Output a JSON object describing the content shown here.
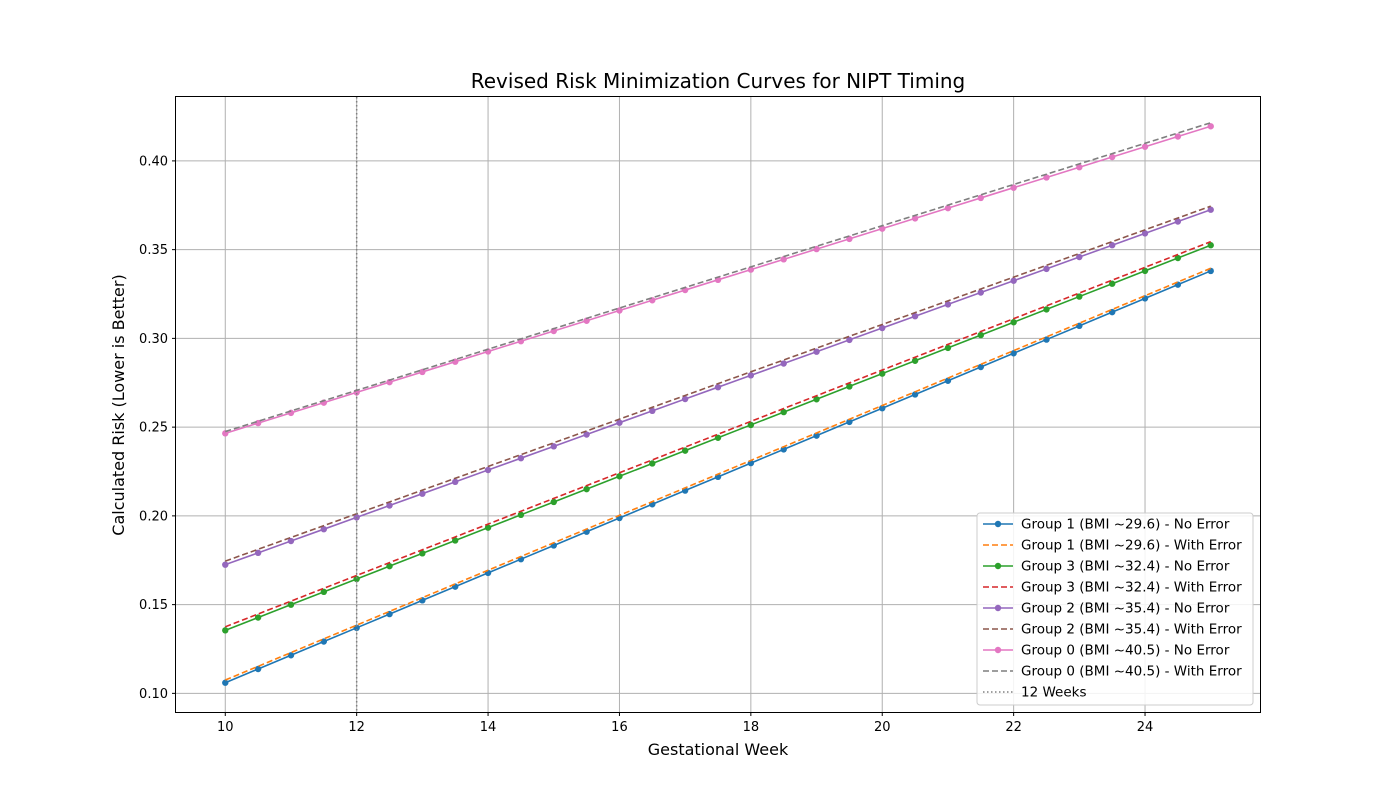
{
  "chart_data": {
    "type": "line",
    "title": "Revised Risk Minimization Curves for NIPT Timing",
    "xlabel": "Gestational Week",
    "ylabel": "Calculated Risk (Lower is Better)",
    "xlim": [
      9.25,
      25.75
    ],
    "ylim": [
      0.0895,
      0.436
    ],
    "xticks": [
      10,
      12,
      14,
      16,
      18,
      20,
      22,
      24
    ],
    "yticks": [
      0.1,
      0.15,
      0.2,
      0.25,
      0.3,
      0.35,
      0.4
    ],
    "x": [
      10,
      10.5,
      11,
      11.5,
      12,
      12.5,
      13,
      13.5,
      14,
      14.5,
      15,
      15.5,
      16,
      16.5,
      17,
      17.5,
      18,
      18.5,
      19,
      19.5,
      20,
      20.5,
      21,
      21.5,
      22,
      22.5,
      23,
      23.5,
      24,
      24.5,
      25
    ],
    "grid": true,
    "legend_position": "lower right",
    "vline": {
      "x": 12,
      "label": "12 Weeks",
      "color": "#808080",
      "style": "dotted"
    },
    "series": [
      {
        "name": "Group 1 (BMI ~29.6) - No Error",
        "color": "#1f77b4",
        "style": "solid",
        "marker": true,
        "start": 0.106,
        "end": 0.338
      },
      {
        "name": "Group 1 (BMI ~29.6) - With Error",
        "color": "#ff7f0e",
        "style": "dashed",
        "marker": false,
        "start": 0.1075,
        "end": 0.3395
      },
      {
        "name": "Group 3 (BMI ~32.4) - No Error",
        "color": "#2ca02c",
        "style": "solid",
        "marker": true,
        "start": 0.1355,
        "end": 0.3525
      },
      {
        "name": "Group 3 (BMI ~32.4) - With Error",
        "color": "#d62728",
        "style": "dashed",
        "marker": false,
        "start": 0.1375,
        "end": 0.3545
      },
      {
        "name": "Group 2 (BMI ~35.4) - No Error",
        "color": "#9467bd",
        "style": "solid",
        "marker": true,
        "start": 0.1725,
        "end": 0.3725
      },
      {
        "name": "Group 2 (BMI ~35.4) - With Error",
        "color": "#8c564b",
        "style": "dashed",
        "marker": false,
        "start": 0.1745,
        "end": 0.3745
      },
      {
        "name": "Group 0 (BMI ~40.5) - No Error",
        "color": "#e377c2",
        "style": "solid",
        "marker": true,
        "start": 0.2465,
        "end": 0.4195
      },
      {
        "name": "Group 0 (BMI ~40.5) - With Error",
        "color": "#7f7f7f",
        "style": "dashed",
        "marker": false,
        "start": 0.2475,
        "end": 0.4215
      }
    ]
  }
}
